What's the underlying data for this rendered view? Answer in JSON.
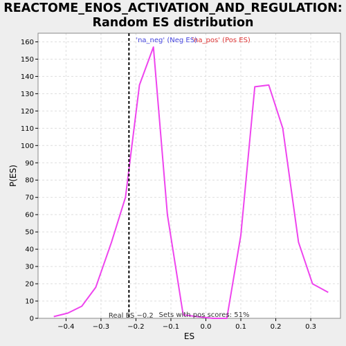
{
  "chart_data": {
    "type": "line",
    "title_line1": "REACTOME_ENOS_ACTIVATION_AND_REGULATION:",
    "title_line2": "Random ES distribution",
    "xlabel": "ES",
    "ylabel": "P(ES)",
    "xlim": [
      -0.48,
      0.385
    ],
    "ylim": [
      0,
      165
    ],
    "xticks": [
      -0.4,
      -0.3,
      -0.2,
      -0.1,
      0.0,
      0.1,
      0.2,
      0.3
    ],
    "xtick_labels": [
      "−0.4",
      "−0.3",
      "−0.2",
      "−0.1",
      "0.0",
      "0.1",
      "0.2",
      "0.3"
    ],
    "yticks": [
      0,
      10,
      20,
      30,
      40,
      50,
      60,
      70,
      80,
      90,
      100,
      110,
      120,
      130,
      140,
      150,
      160
    ],
    "grid": true,
    "series": [
      {
        "color": "#ee44ee",
        "x": [
          -0.435,
          -0.395,
          -0.355,
          -0.315,
          -0.27,
          -0.23,
          -0.19,
          -0.15,
          -0.11,
          -0.065,
          -0.025,
          0.02,
          0.06,
          0.1,
          0.14,
          0.18,
          0.22,
          0.265,
          0.305,
          0.35
        ],
        "y": [
          1,
          3,
          7,
          18,
          44,
          70,
          135,
          157,
          60,
          2,
          1,
          0,
          0,
          48,
          134,
          135,
          110,
          44,
          20,
          15
        ]
      }
    ],
    "real_es": -0.22,
    "real_es_label": "Real ES −0.2",
    "pos_scores_label": "Sets with pos scores: 51%",
    "legend_neg": "'na_neg' (Neg ES)",
    "legend_pos": "'na_pos' (Pos ES)",
    "colors": {
      "line": "#ee44ee",
      "legend_neg": "#4444dd",
      "legend_pos": "#dd3333",
      "real_es_line": "#000000",
      "grid": "#dddddd",
      "plot_bg": "#ffffff",
      "page_bg": "#eeeeee"
    }
  }
}
